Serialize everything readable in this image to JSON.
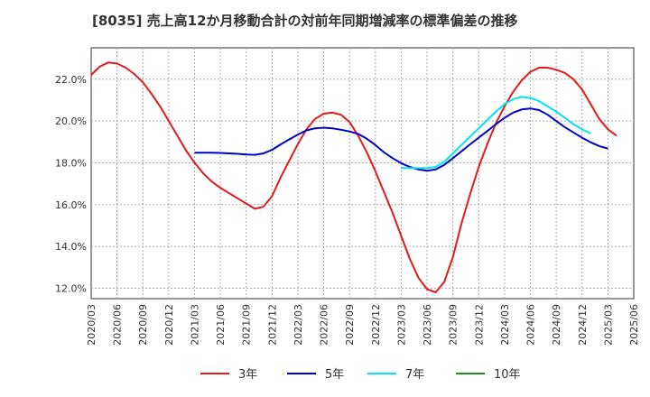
{
  "chart_data": {
    "type": "line",
    "title": "[8035]  売上高12か月移動合計の対前年同期増減率の標準偏差の推移",
    "xlabel": "",
    "ylabel": "",
    "ylim": [
      11.5,
      23.5
    ],
    "y_ticks": [
      12,
      14,
      16,
      18,
      20,
      22
    ],
    "y_tick_labels": [
      "12.0%",
      "14.0%",
      "16.0%",
      "18.0%",
      "20.0%",
      "22.0%"
    ],
    "x_tick_labels": [
      "2020/03",
      "2020/06",
      "2020/09",
      "2020/12",
      "2021/03",
      "2021/06",
      "2021/09",
      "2021/12",
      "2022/03",
      "2022/06",
      "2022/09",
      "2022/12",
      "2023/03",
      "2023/06",
      "2023/09",
      "2023/12",
      "2024/03",
      "2024/06",
      "2024/09",
      "2024/12",
      "2025/03",
      "2025/06"
    ],
    "grid": true,
    "legend_position": "bottom",
    "series": [
      {
        "name": "3年",
        "color": "#e31a1c",
        "start": "2020/03",
        "values": [
          22.2,
          22.6,
          22.8,
          22.75,
          22.55,
          22.25,
          21.85,
          21.3,
          20.7,
          20.0,
          19.3,
          18.6,
          18.0,
          17.5,
          17.1,
          16.8,
          16.55,
          16.3,
          16.05,
          15.8,
          15.9,
          16.4,
          17.3,
          18.1,
          18.9,
          19.6,
          20.1,
          20.35,
          20.4,
          20.3,
          19.95,
          19.3,
          18.5,
          17.6,
          16.6,
          15.6,
          14.5,
          13.4,
          12.5,
          11.95,
          11.8,
          12.3,
          13.5,
          15.1,
          16.5,
          17.8,
          18.9,
          19.9,
          20.7,
          21.4,
          21.95,
          22.35,
          22.55,
          22.55,
          22.45,
          22.3,
          22.0,
          21.5,
          20.8,
          20.1,
          19.6,
          19.3
        ]
      },
      {
        "name": "5年",
        "color": "#0000cc",
        "start": "2021/03",
        "values": [
          18.48,
          18.48,
          18.48,
          18.47,
          18.45,
          18.43,
          18.4,
          18.38,
          18.45,
          18.62,
          18.88,
          19.12,
          19.35,
          19.55,
          19.65,
          19.68,
          19.65,
          19.58,
          19.5,
          19.38,
          19.15,
          18.85,
          18.5,
          18.22,
          17.98,
          17.8,
          17.68,
          17.62,
          17.68,
          17.9,
          18.22,
          18.55,
          18.88,
          19.2,
          19.52,
          19.85,
          20.15,
          20.4,
          20.55,
          20.6,
          20.52,
          20.3,
          20.0,
          19.7,
          19.45,
          19.2,
          18.98,
          18.8,
          18.68
        ]
      },
      {
        "name": "7年",
        "color": "#00e5ee",
        "start": "2023/03",
        "values": [
          17.75,
          17.75,
          17.75,
          17.75,
          17.8,
          18.05,
          18.45,
          18.85,
          19.25,
          19.65,
          20.05,
          20.45,
          20.8,
          21.05,
          21.15,
          21.1,
          20.95,
          20.7,
          20.45,
          20.15,
          19.85,
          19.6,
          19.4
        ]
      },
      {
        "name": "10年",
        "color": "#228b22",
        "start": "",
        "values": []
      }
    ]
  }
}
